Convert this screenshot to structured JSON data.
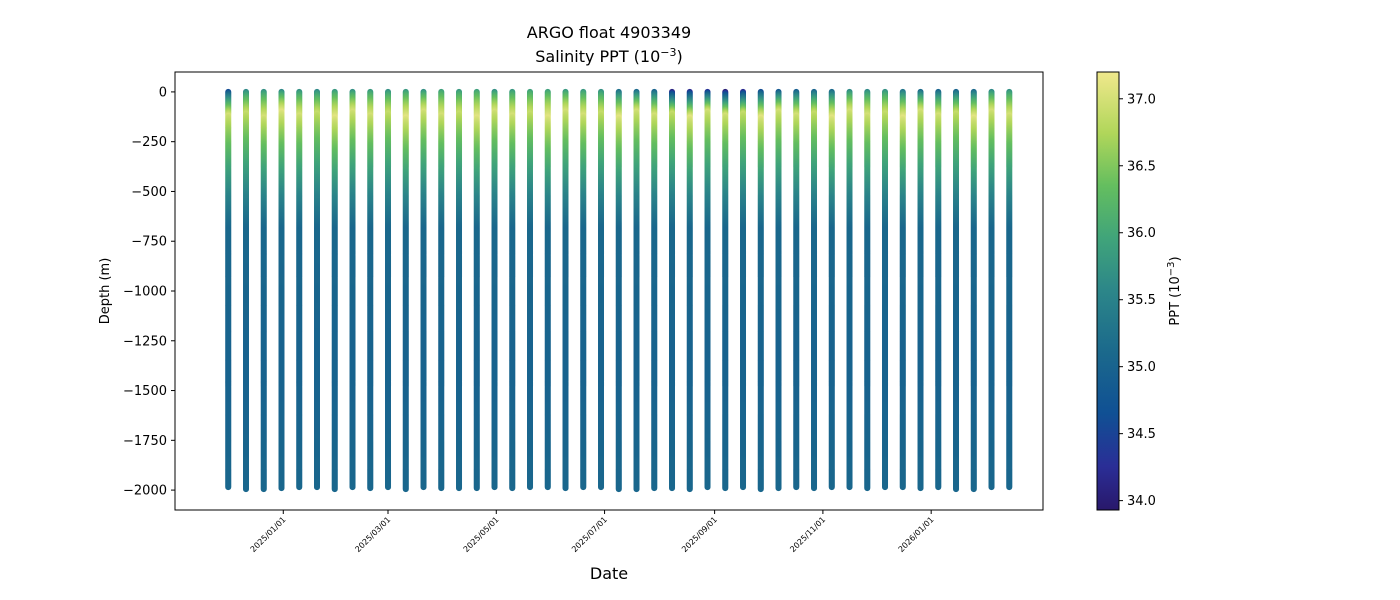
{
  "chart_data": {
    "type": "scatter",
    "title": "ARGO float 4903349",
    "subtitle_base": "Salinity PPT (10",
    "subtitle_exp": "−3",
    "subtitle_end": ")",
    "xlabel": "Date",
    "ylabel": "Depth (m)",
    "colorbar_label_base": "PPT (10",
    "colorbar_label_exp": "−3",
    "colorbar_label_end": ")",
    "xlim": [
      "2024-11-01",
      "2026-03-05"
    ],
    "ylim": [
      -2100,
      100
    ],
    "y_ticks": [
      0,
      -250,
      -500,
      -750,
      -1000,
      -1250,
      -1500,
      -1750,
      -2000
    ],
    "y_tick_labels": [
      "0",
      "−250",
      "−500",
      "−750",
      "−1000",
      "−1250",
      "−1500",
      "−1750",
      "−2000"
    ],
    "x_ticks": [
      "2025-01-01",
      "2025-03-01",
      "2025-05-01",
      "2025-07-01",
      "2025-09-01",
      "2025-11-01",
      "2026-01-01"
    ],
    "x_tick_labels": [
      "2025/01/01",
      "2025/03/01",
      "2025/05/01",
      "2025/07/01",
      "2025/09/01",
      "2025/11/01",
      "2026/01/01"
    ],
    "color_range": [
      33.93,
      37.2
    ],
    "colorbar_ticks": [
      34.0,
      34.5,
      35.0,
      35.5,
      36.0,
      36.5,
      37.0
    ],
    "colorbar_tick_labels": [
      "34.0",
      "34.5",
      "35.0",
      "35.5",
      "36.0",
      "36.5",
      "37.0"
    ],
    "colormap": "haline",
    "grid": false,
    "profile_dates": [
      "2024-12-01",
      "2024-12-11",
      "2024-12-21",
      "2024-12-31",
      "2025-01-10",
      "2025-01-20",
      "2025-01-30",
      "2025-02-09",
      "2025-02-19",
      "2025-03-01",
      "2025-03-11",
      "2025-03-21",
      "2025-03-31",
      "2025-04-10",
      "2025-04-20",
      "2025-04-30",
      "2025-05-10",
      "2025-05-20",
      "2025-05-30",
      "2025-06-09",
      "2025-06-19",
      "2025-06-29",
      "2025-07-09",
      "2025-07-19",
      "2025-07-29",
      "2025-08-08",
      "2025-08-18",
      "2025-08-28",
      "2025-09-07",
      "2025-09-17",
      "2025-09-27",
      "2025-10-07",
      "2025-10-17",
      "2025-10-27",
      "2025-11-06",
      "2025-11-16",
      "2025-11-26",
      "2025-12-06",
      "2025-12-16",
      "2025-12-26",
      "2026-01-05",
      "2026-01-15",
      "2026-01-25",
      "2026-02-04",
      "2026-02-14"
    ],
    "profile_max_depths": [
      -1985,
      -1995,
      -1995,
      -1990,
      -1985,
      -1985,
      -1995,
      -1985,
      -1990,
      -1985,
      -1995,
      -1985,
      -1990,
      -1990,
      -1990,
      -1985,
      -1990,
      -1985,
      -1985,
      -1990,
      -1985,
      -1985,
      -1995,
      -1995,
      -1990,
      -1990,
      -1995,
      -1985,
      -1990,
      -1985,
      -1995,
      -1990,
      -1985,
      -1990,
      -1985,
      -1985,
      -1990,
      -1985,
      -1985,
      -1990,
      -1985,
      -1995,
      -1995,
      -1985,
      -1985
    ],
    "profile_surface_salinity": [
      34.6,
      35.6,
      35.7,
      35.6,
      35.7,
      35.6,
      35.8,
      35.7,
      35.8,
      35.7,
      35.8,
      35.7,
      35.9,
      35.8,
      35.9,
      35.7,
      35.8,
      35.9,
      35.9,
      35.8,
      35.8,
      35.7,
      35.2,
      35.1,
      35.0,
      34.1,
      34.2,
      34.3,
      34.0,
      34.2,
      34.6,
      34.8,
      34.9,
      35.0,
      35.1,
      35.6,
      35.6,
      35.7,
      35.3,
      35.1,
      35.0,
      35.0,
      35.1,
      35.6,
      35.7
    ],
    "profile_max_salinity": [
      37.0,
      36.9,
      37.0,
      37.1,
      37.0,
      36.9,
      37.1,
      37.0,
      37.0,
      36.9,
      37.1,
      37.0,
      37.0,
      36.9,
      37.1,
      37.0,
      37.0,
      36.9,
      37.1,
      37.0,
      37.0,
      36.9,
      37.1,
      37.0,
      37.0,
      36.9,
      37.1,
      37.0,
      37.0,
      36.9,
      37.1,
      37.0,
      37.0,
      36.9,
      37.1,
      37.0,
      37.0,
      36.9,
      37.1,
      37.0,
      37.0,
      36.9,
      37.1,
      37.0,
      37.0
    ],
    "profile_max_salinity_depth": [
      -120,
      -110,
      -130,
      -100,
      -120,
      -110,
      -130,
      -100,
      -120,
      -110,
      -130,
      -100,
      -120,
      -110,
      -130,
      -100,
      -120,
      -110,
      -130,
      -100,
      -120,
      -110,
      -130,
      -100,
      -120,
      -110,
      -130,
      -100,
      -120,
      -110,
      -130,
      -100,
      -120,
      -110,
      -130,
      -100,
      -120,
      -110,
      -130,
      -100,
      -120,
      -110,
      -130,
      -100,
      -120
    ],
    "deep_salinity": 35.05
  }
}
